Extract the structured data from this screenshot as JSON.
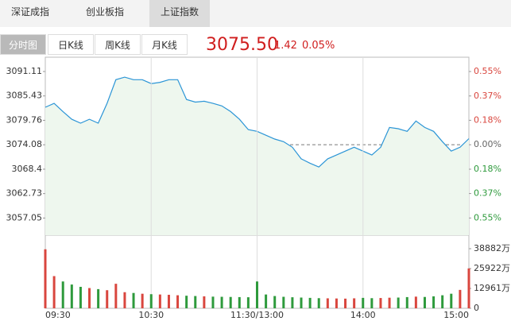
{
  "tabs": [
    "深证成指",
    "创业板指",
    "上证指数"
  ],
  "subtabs": [
    "分时图",
    "日K线",
    "周K线",
    "月K线"
  ],
  "quote": {
    "price": "3075.50",
    "change": "1.42",
    "percent": "0.05%"
  },
  "chart_data": [
    {
      "type": "line",
      "color": "#2b95d6",
      "area_color": "#eef7ee",
      "up_color": "#d9463e",
      "down_color": "#2e9a3c",
      "zero_color": "#666666",
      "x": [
        0,
        5,
        10,
        15,
        20,
        25,
        30,
        35,
        40,
        45,
        50,
        55,
        60,
        65,
        70,
        75,
        80,
        85,
        90,
        95,
        100,
        105,
        110,
        115,
        120,
        125,
        130,
        135,
        140,
        145,
        150,
        155,
        160,
        165,
        170,
        175,
        180,
        185,
        190,
        195,
        200,
        205,
        210,
        215,
        220,
        225,
        230,
        235,
        240
      ],
      "values": [
        3082.8,
        3083.7,
        3081.8,
        3080.0,
        3079.1,
        3080.0,
        3079.1,
        3083.7,
        3089.2,
        3089.8,
        3089.2,
        3089.2,
        3088.3,
        3088.6,
        3089.2,
        3089.2,
        3084.6,
        3084.0,
        3084.2,
        3083.7,
        3083.1,
        3081.8,
        3080.0,
        3077.6,
        3077.2,
        3076.3,
        3075.4,
        3074.8,
        3073.5,
        3070.8,
        3069.8,
        3068.9,
        3070.8,
        3071.7,
        3072.6,
        3073.5,
        3072.6,
        3071.7,
        3073.5,
        3078.1,
        3077.8,
        3077.2,
        3079.6,
        3078.1,
        3077.2,
        3074.8,
        3072.6,
        3073.5,
        3075.5
      ],
      "xlim": [
        0,
        240
      ],
      "ylim": [
        3053.06,
        3094.43
      ],
      "yticks": [
        3091.11,
        3085.43,
        3079.76,
        3074.08,
        3068.4,
        3062.73,
        3057.05
      ],
      "y2lim": [
        -0.684,
        0.662
      ],
      "y2ticks": [
        {
          "value": 0.554,
          "label": "0.55%"
        },
        {
          "value": 0.369,
          "label": "0.37%"
        },
        {
          "value": 0.185,
          "label": "0.18%"
        },
        {
          "value": 0,
          "label": "0.00%"
        },
        {
          "value": -0.185,
          "label": "0.18%"
        },
        {
          "value": -0.369,
          "label": "0.37%"
        },
        {
          "value": -0.554,
          "label": "0.55%"
        }
      ]
    },
    {
      "type": "bar",
      "up_color": "#d9463e",
      "down_color": "#2e9a3c",
      "x": [
        0,
        5,
        10,
        15,
        20,
        25,
        30,
        35,
        40,
        45,
        50,
        55,
        60,
        65,
        70,
        75,
        80,
        85,
        90,
        95,
        100,
        105,
        110,
        115,
        120,
        125,
        130,
        135,
        140,
        145,
        150,
        155,
        160,
        165,
        170,
        175,
        180,
        185,
        190,
        195,
        200,
        205,
        210,
        215,
        220,
        225,
        230,
        235,
        240
      ],
      "values": [
        38500,
        21000,
        17500,
        15500,
        14000,
        13200,
        12500,
        11800,
        16000,
        10500,
        10000,
        9500,
        9200,
        9000,
        8800,
        8500,
        8200,
        8000,
        7800,
        7600,
        7500,
        7400,
        7300,
        7200,
        17500,
        9000,
        8000,
        7500,
        7200,
        7000,
        6800,
        6600,
        6500,
        6400,
        6300,
        6500,
        6800,
        6600,
        6700,
        6900,
        7000,
        7300,
        7600,
        7400,
        7800,
        8500,
        9500,
        12000,
        26000
      ],
      "xlim": [
        0,
        240
      ],
      "xticks": [
        {
          "value": 0,
          "label": "09:30"
        },
        {
          "value": 60,
          "label": "10:30"
        },
        {
          "value": 120,
          "label": "11:30/13:00"
        },
        {
          "value": 180,
          "label": "14:00"
        },
        {
          "value": 240,
          "label": "15:00"
        }
      ],
      "ylim": [
        0,
        47700
      ],
      "yticks": [
        {
          "value": 38882,
          "label": "38882万"
        },
        {
          "value": 25922,
          "label": "25922万"
        },
        {
          "value": 12961,
          "label": "12961万"
        },
        0
      ]
    }
  ]
}
